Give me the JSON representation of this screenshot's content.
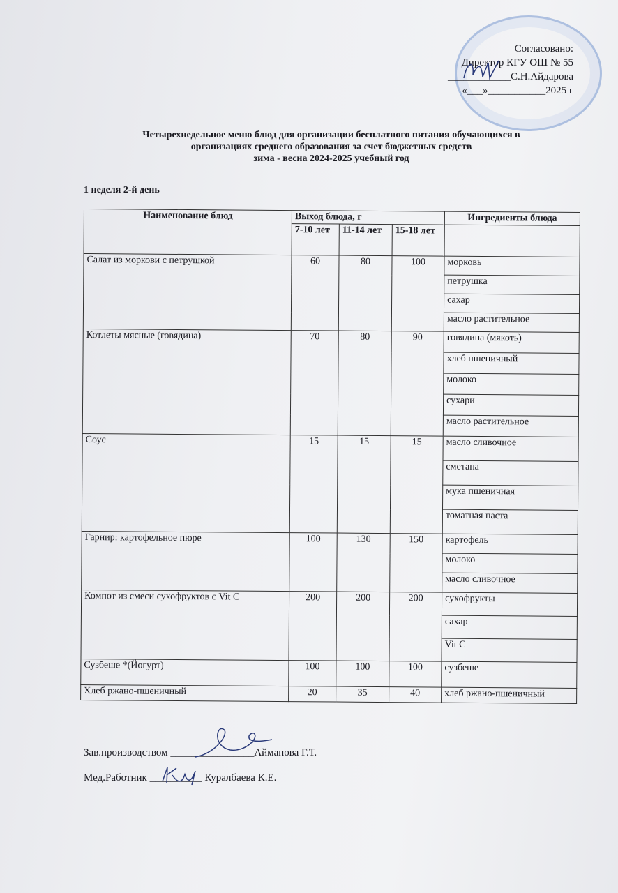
{
  "approval": {
    "lines": [
      "Согласовано:",
      "Директор КГУ ОШ № 55",
      "____________С.Н.Айдарова",
      "«___»___________2025 г"
    ]
  },
  "title": [
    "Четырехнедельное меню блюд для организации бесплатного питания обучающихся в",
    "организациях среднего образования за счет бюджетных средств",
    "зима - весна 2024-2025 учебный год"
  ],
  "week_day": "1 неделя 2-й день",
  "table": {
    "headers": {
      "dish": "Наименование блюд",
      "yield": "Выход блюда, г",
      "ingredients": "Ингредиенты блюда",
      "ages": [
        "7-10 лет",
        "11-14 лет",
        "15-18 лет"
      ]
    },
    "rows": [
      {
        "dish": "Салат из моркови с петрушкой",
        "values": [
          "60",
          "80",
          "100"
        ],
        "ingredients": [
          "морковь",
          "петрушка",
          "сахар",
          "масло растительное"
        ]
      },
      {
        "dish": "Котлеты мясные (говядина)",
        "values": [
          "70",
          "80",
          "90"
        ],
        "ingredients": [
          "говядина (мякоть)",
          "хлеб пшеничный",
          "молоко",
          "сухари",
          "масло растительное"
        ]
      },
      {
        "dish": "Соус",
        "values": [
          "15",
          "15",
          "15"
        ],
        "ingredients": [
          "масло сливочное",
          "сметана",
          "мука пшеничная",
          "томатная паста"
        ]
      },
      {
        "dish": "Гарнир: картофельное пюре",
        "values": [
          "100",
          "130",
          "150"
        ],
        "ingredients": [
          "картофель",
          "молоко",
          "масло сливочное"
        ]
      },
      {
        "dish": "Компот из смеси сухофруктов с Vit C",
        "values": [
          "200",
          "200",
          "200"
        ],
        "ingredients": [
          "сухофрукты",
          "сахар",
          "Vit C"
        ]
      },
      {
        "dish": "Сузбеше *(Йогурт)",
        "values": [
          "100",
          "100",
          "100"
        ],
        "ingredients": [
          "сузбеше"
        ]
      },
      {
        "dish": "Хлеб ржано-пшеничный",
        "values": [
          "20",
          "35",
          "40"
        ],
        "ingredients": [
          "хлеб ржано-пшеничный"
        ]
      }
    ]
  },
  "footer": {
    "production": "Зав.производством ________________Айманова Г.Т.",
    "medic": "Мед.Работник __________ Куралбаева К.Е."
  },
  "colors": {
    "stamp": "#5a82c8",
    "ink": "#1b1b22",
    "signature": "#2a3a7a"
  }
}
